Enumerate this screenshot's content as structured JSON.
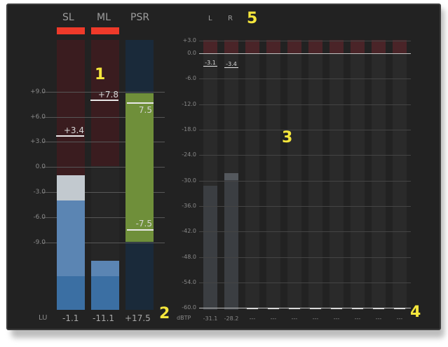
{
  "loudness": {
    "headers": [
      "SL",
      "ML",
      "PSR"
    ],
    "scale": [
      "+9.0",
      "+6.0",
      "+3.0",
      "0.0",
      "-3.0",
      "-6.0",
      "-9.0"
    ],
    "sl_marker": "+3.4",
    "ml_marker": "+7.8",
    "psr_top": "7.5",
    "psr_bottom": "-7.5",
    "unit": "LU",
    "footer": [
      "-1.1",
      "-11.1",
      "+17.5"
    ]
  },
  "true_peak": {
    "headers": [
      "L",
      "R"
    ],
    "scale": [
      "+3.0",
      "0.0",
      "-6.0",
      "-12.0",
      "-18.0",
      "-24.0",
      "-30.0",
      "-36.0",
      "-42.0",
      "-48.0",
      "-54.0",
      "-60.0"
    ],
    "l_peak": "-3.1",
    "r_peak": "-3.4",
    "unit": "dBTP",
    "footer": [
      "-31.1",
      "-28.2",
      "---",
      "---",
      "---",
      "---",
      "---",
      "---",
      "---",
      "---"
    ]
  },
  "callouts": [
    "1",
    "2",
    "3",
    "4",
    "5"
  ],
  "colors": {
    "clip": "#ee3a2a",
    "sl_blue": "#5b85b3",
    "psr_green": "#6f8f3a"
  }
}
